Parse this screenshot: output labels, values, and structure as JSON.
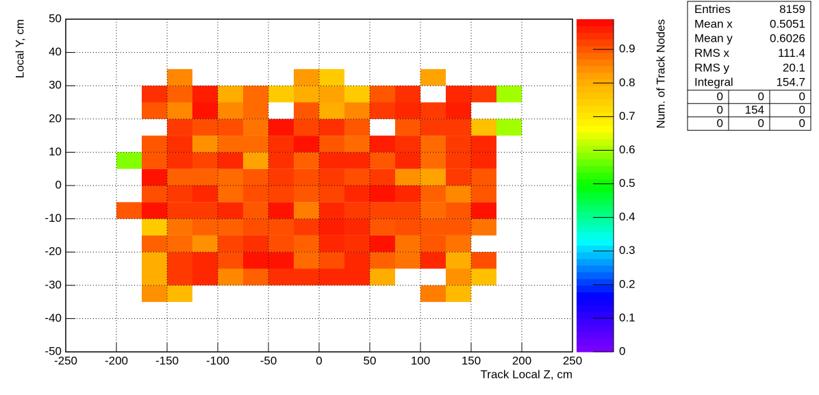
{
  "chart_data": {
    "type": "heatmap",
    "xlabel": "Track Local Z, cm",
    "ylabel": "Local Y, cm",
    "zlabel": "Num. of Track Nodes",
    "xlim": [
      -250,
      250
    ],
    "ylim": [
      -50,
      50
    ],
    "zlim": [
      0,
      0.99
    ],
    "xticks": [
      -250,
      -200,
      -150,
      -100,
      -50,
      0,
      50,
      100,
      150,
      200,
      250
    ],
    "yticks": [
      -50,
      -40,
      -30,
      -20,
      -10,
      0,
      10,
      20,
      30,
      40,
      50
    ],
    "zticks": [
      0,
      0.1,
      0.2,
      0.3,
      0.4,
      0.5,
      0.6,
      0.7,
      0.8,
      0.9
    ],
    "grid": true,
    "colorscale": [
      "#8000ff",
      "#0000ff",
      "#00ffff",
      "#00ff00",
      "#ffff00",
      "#ffa000",
      "#ff0000"
    ],
    "xbins": [
      -200,
      -175,
      -150,
      -125,
      -100,
      -75,
      -50,
      -25,
      0,
      25,
      50,
      75,
      100,
      125,
      150,
      175,
      200
    ],
    "ybins": [
      -35,
      -30,
      -25,
      -20,
      -15,
      -10,
      -5,
      0,
      5,
      10,
      15,
      20,
      25,
      30,
      35
    ],
    "z": [
      [
        null,
        0.84,
        0.78,
        null,
        null,
        null,
        null,
        null,
        null,
        null,
        null,
        null,
        0.86,
        0.78,
        null,
        null
      ],
      [
        null,
        0.8,
        0.93,
        0.95,
        0.85,
        0.89,
        0.94,
        0.94,
        0.95,
        0.95,
        0.8,
        null,
        null,
        0.84,
        0.77,
        null
      ],
      [
        null,
        0.8,
        0.93,
        0.95,
        0.91,
        0.97,
        0.97,
        0.88,
        0.91,
        0.95,
        0.89,
        0.87,
        0.95,
        0.8,
        0.91,
        null
      ],
      [
        null,
        0.89,
        0.88,
        0.84,
        0.92,
        0.94,
        0.91,
        0.89,
        0.95,
        0.94,
        0.97,
        0.87,
        0.9,
        0.87,
        null,
        null
      ],
      [
        null,
        0.75,
        0.87,
        0.89,
        0.89,
        0.91,
        0.91,
        0.93,
        0.96,
        0.95,
        0.9,
        0.91,
        0.9,
        0.9,
        0.87,
        null
      ],
      [
        0.9,
        0.97,
        0.93,
        0.93,
        0.95,
        0.9,
        0.97,
        0.86,
        0.95,
        0.93,
        0.92,
        0.92,
        0.88,
        0.9,
        0.97,
        null
      ],
      [
        null,
        0.91,
        0.93,
        0.95,
        0.88,
        0.91,
        0.92,
        0.9,
        0.92,
        0.95,
        0.97,
        0.95,
        0.89,
        0.85,
        0.9,
        null
      ],
      [
        null,
        0.97,
        0.89,
        0.89,
        0.88,
        0.9,
        0.93,
        0.91,
        0.93,
        0.91,
        0.93,
        0.84,
        0.82,
        0.93,
        0.9,
        null
      ],
      [
        0.58,
        0.9,
        0.94,
        0.92,
        0.95,
        0.82,
        0.94,
        0.89,
        0.95,
        0.95,
        0.9,
        0.95,
        0.88,
        0.93,
        0.95,
        null
      ],
      [
        null,
        0.9,
        0.94,
        0.84,
        0.88,
        0.88,
        0.94,
        0.97,
        0.9,
        0.88,
        0.96,
        0.94,
        0.88,
        0.93,
        0.95,
        null
      ],
      [
        null,
        null,
        0.93,
        0.91,
        0.91,
        0.87,
        0.97,
        0.92,
        0.94,
        0.9,
        null,
        0.9,
        0.93,
        0.93,
        0.77,
        0.6
      ],
      [
        null,
        0.9,
        0.85,
        0.97,
        0.85,
        0.88,
        null,
        0.9,
        0.8,
        0.85,
        0.93,
        0.95,
        0.93,
        0.96,
        null,
        null
      ],
      [
        null,
        0.94,
        0.89,
        0.96,
        0.8,
        0.88,
        0.75,
        0.8,
        0.82,
        0.75,
        0.9,
        0.94,
        null,
        0.95,
        0.93,
        0.6
      ],
      [
        null,
        null,
        0.85,
        null,
        null,
        null,
        null,
        0.83,
        0.75,
        null,
        null,
        null,
        0.82,
        null,
        null,
        null
      ]
    ],
    "stats": {
      "rows": [
        [
          "Entries",
          8159
        ],
        [
          "Mean x",
          0.5051
        ],
        [
          "Mean y",
          0.6026
        ],
        [
          "RMS x",
          111.4
        ],
        [
          "RMS y",
          20.1
        ],
        [
          "Integral",
          154.7
        ]
      ],
      "table": [
        [
          0,
          0,
          0
        ],
        [
          0,
          154,
          0
        ],
        [
          0,
          0,
          0
        ]
      ]
    }
  }
}
